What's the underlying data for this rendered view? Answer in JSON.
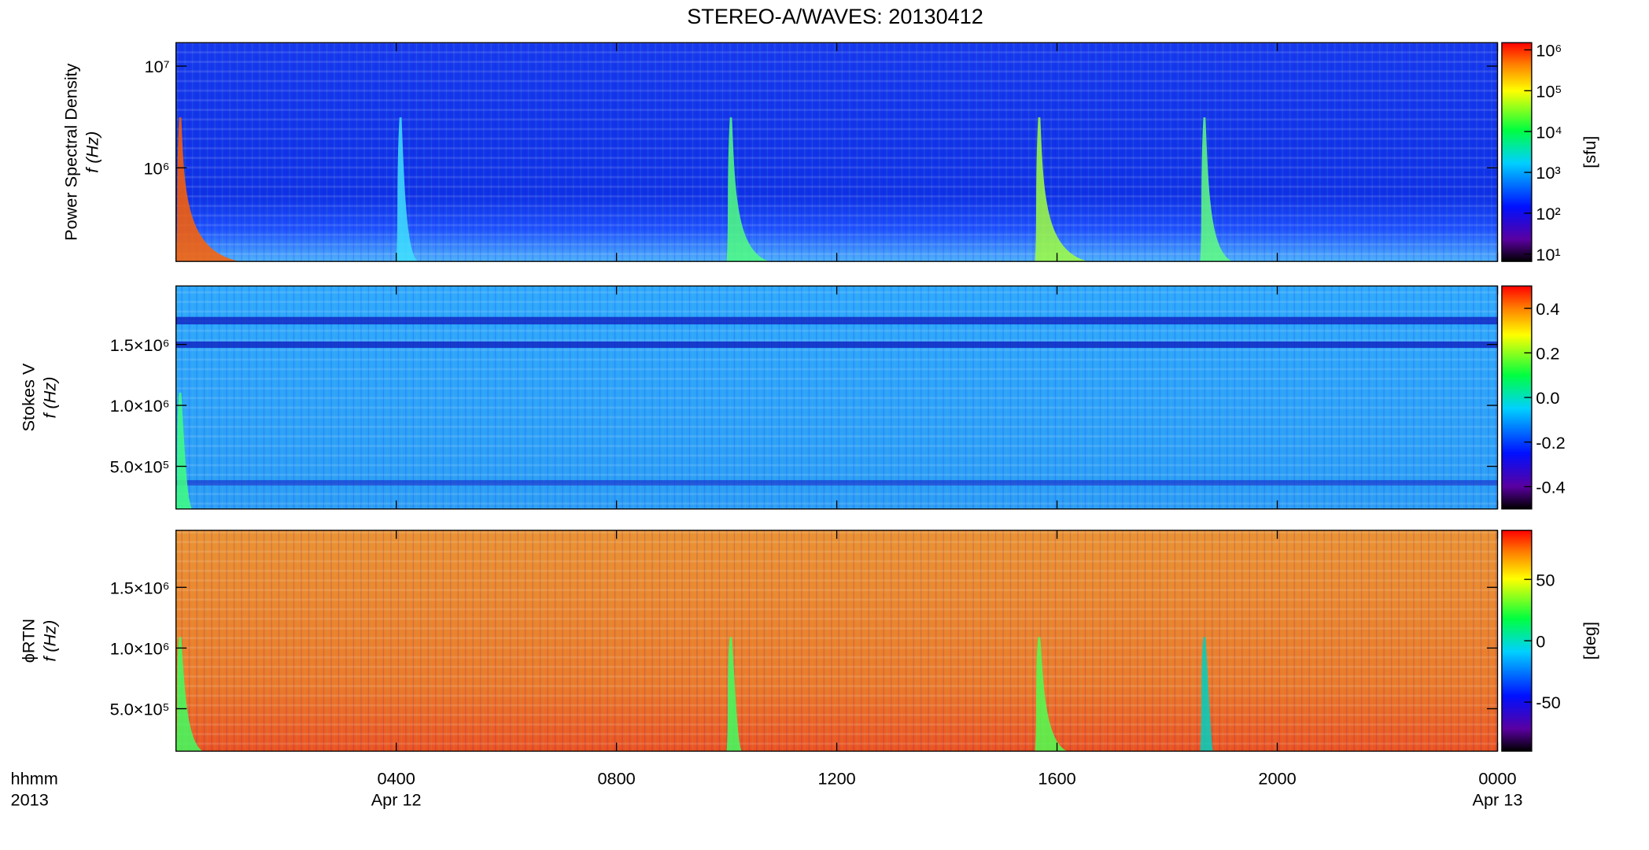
{
  "chart_data": [
    {
      "type": "heatmap",
      "title": "STEREO-A/WAVES: 20130412",
      "ylabel": [
        "Power Spectral Density",
        "f (Hz)"
      ],
      "ylog": true,
      "ylim": [
        120000,
        17000000
      ],
      "yticks": [
        {
          "value": 1000000,
          "label": "10⁶"
        },
        {
          "value": 10000000,
          "label": "10⁷"
        }
      ],
      "xlim": [
        0,
        24
      ],
      "colorbar": {
        "label": "[sfu]",
        "log": true,
        "lim": [
          6.6,
          1500000
        ],
        "ticks": [
          {
            "value": 10,
            "label": "10¹"
          },
          {
            "value": 100,
            "label": "10²"
          },
          {
            "value": 1000,
            "label": "10³"
          },
          {
            "value": 10000,
            "label": "10⁴"
          },
          {
            "value": 100000,
            "label": "10⁵"
          },
          {
            "value": 1000000,
            "label": "10⁶"
          }
        ]
      }
    },
    {
      "type": "heatmap",
      "ylabel": [
        "Stokes V",
        "f (Hz)"
      ],
      "ylog": false,
      "ylim": [
        150000,
        1980000
      ],
      "yticks": [
        {
          "value": 500000,
          "label": "5.0×10⁵"
        },
        {
          "value": 1000000,
          "label": "1.0×10⁶"
        },
        {
          "value": 1500000,
          "label": "1.5×10⁶"
        }
      ],
      "xlim": [
        0,
        24
      ],
      "colorbar": {
        "label": "",
        "log": false,
        "lim": [
          -0.5,
          0.5
        ],
        "ticks": [
          -0.4,
          -0.2,
          {
            "value": 0,
            "label": "0.0"
          },
          0.2,
          0.4
        ]
      }
    },
    {
      "type": "heatmap",
      "ylabel": [
        "ϕRTN",
        "f (Hz)"
      ],
      "ylog": false,
      "ylim": [
        150000,
        1970000
      ],
      "yticks": [
        {
          "value": 500000,
          "label": "5.0×10⁵"
        },
        {
          "value": 1000000,
          "label": "1.0×10⁶"
        },
        {
          "value": 1500000,
          "label": "1.5×10⁶"
        }
      ],
      "xlim": [
        0,
        24
      ],
      "xlabel": [
        "hhmm",
        "2013"
      ],
      "xticks": [
        {
          "value": 4,
          "label": "0400"
        },
        {
          "value": 8,
          "label": "0800"
        },
        {
          "value": 12,
          "label": "1200"
        },
        {
          "value": 16,
          "label": "1600"
        },
        {
          "value": 20,
          "label": "2000"
        },
        {
          "value": 24,
          "label": "0000"
        }
      ],
      "xdates": [
        {
          "value": 4,
          "label": "Apr 12"
        },
        {
          "value": 24,
          "label": "Apr 13"
        }
      ],
      "colorbar": {
        "label": "[deg]",
        "log": false,
        "lim": [
          -90,
          90
        ],
        "ticks": [
          -50,
          0,
          50
        ]
      }
    }
  ]
}
